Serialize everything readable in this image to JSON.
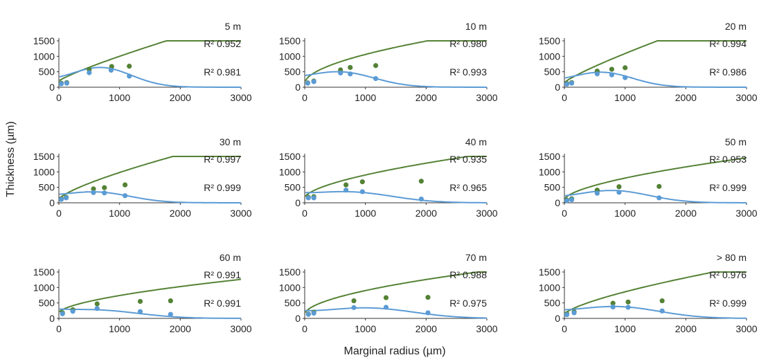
{
  "chart_data": {
    "type": "scatter",
    "layout": "3x3 small multiples",
    "xlabel": "Marginal radius (µm)",
    "ylabel": "Thickness (µm)",
    "xlim": [
      0,
      3000
    ],
    "ylim": [
      0,
      1500
    ],
    "xticks": [
      0,
      1000,
      2000,
      3000
    ],
    "yticks": [
      0,
      500,
      1000,
      1500
    ],
    "grid": false,
    "legend": "none",
    "series_colors": {
      "upper": "#548235",
      "lower": "#5b9bd5"
    },
    "panels": [
      {
        "label": "5 m",
        "r2_upper": "R² 0.952",
        "r2_lower": "R² 0.981",
        "upper_points": [
          [
            40,
            130
          ],
          [
            130,
            150
          ],
          [
            500,
            570
          ],
          [
            870,
            670
          ],
          [
            1160,
            680
          ]
        ],
        "upper_fit": {
          "a": 200,
          "b": 800,
          "c": 0.85
        },
        "lower_points": [
          [
            40,
            110
          ],
          [
            130,
            130
          ],
          [
            500,
            470
          ],
          [
            860,
            550
          ],
          [
            1160,
            360
          ]
        ],
        "lower_fit": {
          "base": 100,
          "A": 455,
          "mu": 700,
          "sigma": 500
        }
      },
      {
        "label": "10 m",
        "r2_upper": "R² 0.980",
        "r2_lower": "R² 0.993",
        "upper_points": [
          [
            50,
            140
          ],
          [
            150,
            200
          ],
          [
            590,
            560
          ],
          [
            750,
            640
          ],
          [
            1170,
            700
          ]
        ],
        "upper_fit": {
          "a": 130,
          "b": 930,
          "c": 0.55
        },
        "lower_points": [
          [
            50,
            130
          ],
          [
            150,
            180
          ],
          [
            590,
            460
          ],
          [
            750,
            430
          ],
          [
            1170,
            280
          ]
        ],
        "lower_fit": {
          "base": 110,
          "A": 345,
          "mu": 590,
          "sigma": 560
        }
      },
      {
        "label": "20 m",
        "r2_upper": "R² 0.994",
        "r2_lower": "R² 0.986",
        "upper_points": [
          [
            40,
            120
          ],
          [
            120,
            150
          ],
          [
            540,
            520
          ],
          [
            780,
            580
          ],
          [
            1000,
            630
          ]
        ],
        "upper_fit": {
          "a": 150,
          "b": 940,
          "c": 0.85
        },
        "lower_points": [
          [
            40,
            100
          ],
          [
            120,
            130
          ],
          [
            540,
            430
          ],
          [
            780,
            400
          ],
          [
            1000,
            310
          ]
        ],
        "lower_fit": {
          "base": 90,
          "A": 340,
          "mu": 630,
          "sigma": 500
        }
      },
      {
        "label": "30 m",
        "r2_upper": "R² 0.997",
        "r2_lower": "R² 0.999",
        "upper_points": [
          [
            40,
            130
          ],
          [
            120,
            180
          ],
          [
            570,
            450
          ],
          [
            750,
            490
          ],
          [
            1090,
            580
          ]
        ],
        "upper_fit": {
          "a": 120,
          "b": 860,
          "c": 0.75
        },
        "lower_points": [
          [
            40,
            110
          ],
          [
            120,
            160
          ],
          [
            570,
            330
          ],
          [
            750,
            320
          ],
          [
            1090,
            230
          ]
        ],
        "lower_fit": {
          "base": 100,
          "A": 240,
          "mu": 620,
          "sigma": 560
        }
      },
      {
        "label": "40 m",
        "r2_upper": "R² 0.935",
        "r2_lower": "R² 0.965",
        "upper_points": [
          [
            60,
            180
          ],
          [
            150,
            200
          ],
          [
            680,
            580
          ],
          [
            950,
            680
          ],
          [
            1920,
            700
          ]
        ],
        "upper_fit": {
          "a": 160,
          "b": 740,
          "c": 0.6
        },
        "lower_points": [
          [
            60,
            160
          ],
          [
            150,
            160
          ],
          [
            680,
            410
          ],
          [
            950,
            360
          ],
          [
            1920,
            120
          ]
        ],
        "lower_fit": {
          "base": 150,
          "A": 240,
          "mu": 760,
          "sigma": 700
        }
      },
      {
        "label": "50 m",
        "r2_upper": "R² 0.953",
        "r2_lower": "R² 0.999",
        "upper_points": [
          [
            40,
            90
          ],
          [
            120,
            130
          ],
          [
            540,
            410
          ],
          [
            900,
            520
          ],
          [
            1560,
            530
          ]
        ],
        "upper_fit": {
          "a": 100,
          "b": 700,
          "c": 0.6
        },
        "lower_points": [
          [
            40,
            70
          ],
          [
            120,
            100
          ],
          [
            540,
            310
          ],
          [
            900,
            340
          ],
          [
            1560,
            160
          ]
        ],
        "lower_fit": {
          "base": 70,
          "A": 285,
          "mu": 800,
          "sigma": 600
        }
      },
      {
        "label": "60 m",
        "r2_upper": "R² 0.991",
        "r2_lower": "R² 0.991",
        "upper_points": [
          [
            60,
            180
          ],
          [
            230,
            280
          ],
          [
            630,
            470
          ],
          [
            1340,
            550
          ],
          [
            1840,
            570
          ]
        ],
        "upper_fit": {
          "a": 180,
          "b": 560,
          "c": 0.6
        },
        "lower_points": [
          [
            60,
            150
          ],
          [
            230,
            230
          ],
          [
            630,
            320
          ],
          [
            1340,
            220
          ],
          [
            1840,
            130
          ]
        ],
        "lower_fit": {
          "base": 150,
          "A": 175,
          "mu": 650,
          "sigma": 700
        }
      },
      {
        "label": "70 m",
        "r2_upper": "R² 0.988",
        "r2_lower": "R² 0.975",
        "upper_points": [
          [
            60,
            140
          ],
          [
            150,
            200
          ],
          [
            810,
            570
          ],
          [
            1340,
            670
          ],
          [
            2030,
            680
          ]
        ],
        "upper_fit": {
          "a": 130,
          "b": 770,
          "c": 0.55
        },
        "lower_points": [
          [
            60,
            130
          ],
          [
            150,
            170
          ],
          [
            810,
            350
          ],
          [
            1340,
            360
          ],
          [
            2030,
            180
          ]
        ],
        "lower_fit": {
          "base": 130,
          "A": 240,
          "mu": 1050,
          "sigma": 750
        }
      },
      {
        "label": "> 80 m",
        "r2_upper": "R² 0.976",
        "r2_lower": "R² 0.999",
        "upper_points": [
          [
            40,
            150
          ],
          [
            160,
            210
          ],
          [
            800,
            490
          ],
          [
            1050,
            530
          ],
          [
            1610,
            570
          ]
        ],
        "upper_fit": {
          "a": 130,
          "b": 730,
          "c": 0.7
        },
        "lower_points": [
          [
            40,
            120
          ],
          [
            160,
            180
          ],
          [
            800,
            370
          ],
          [
            1050,
            360
          ],
          [
            1610,
            240
          ]
        ],
        "lower_fit": {
          "base": 110,
          "A": 270,
          "mu": 870,
          "sigma": 700
        }
      }
    ]
  }
}
